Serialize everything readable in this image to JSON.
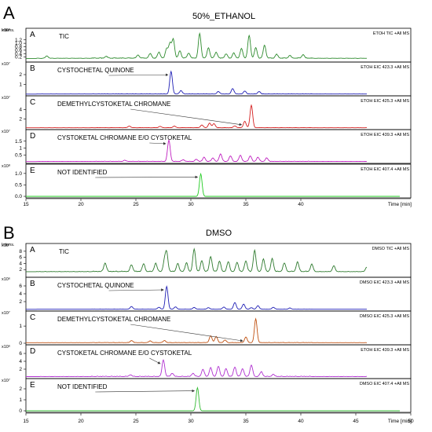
{
  "figure": {
    "panel_letters": [
      "A",
      "B"
    ],
    "titles": [
      "50%_ETHANOL",
      "DMSO"
    ]
  },
  "chart_data": [
    {
      "type": "line",
      "panel": "A",
      "title": "50%_ETHANOL",
      "xlabel": "Time [min]",
      "ylabel": "Intens.",
      "xlim": [
        15,
        50
      ],
      "x_ticks": [
        15,
        20,
        25,
        30,
        35,
        40
      ],
      "x_tick_labels": [
        "15",
        "20",
        "25",
        "30",
        "35",
        "40"
      ],
      "traces": [
        {
          "letter": "A",
          "label": "TIC",
          "legend": "ETOH TIC +All MS",
          "exponent": "x10⁸",
          "color": "#2e8b2e",
          "ylim": [
            0,
            1.6
          ],
          "yticks": [
            0.2,
            0.4,
            0.6,
            0.8,
            1.0,
            1.2
          ],
          "ytick_labels": [
            "0.2",
            "0.4",
            "0.6",
            "0.8",
            "1.0",
            "1.2"
          ],
          "baseline": 0.12,
          "noise": 0.05,
          "peaks": [
            [
              16.9,
              0.14
            ],
            [
              22.3,
              0.1
            ],
            [
              25.2,
              0.18
            ],
            [
              26.3,
              0.26
            ],
            [
              27.1,
              0.35
            ],
            [
              27.8,
              0.55
            ],
            [
              28.1,
              0.85
            ],
            [
              28.4,
              1.1
            ],
            [
              29.0,
              0.42
            ],
            [
              29.8,
              0.3
            ],
            [
              30.8,
              1.42
            ],
            [
              31.6,
              0.6
            ],
            [
              32.3,
              0.35
            ],
            [
              33.2,
              0.25
            ],
            [
              33.9,
              0.3
            ],
            [
              34.6,
              0.55
            ],
            [
              35.3,
              1.32
            ],
            [
              35.9,
              0.6
            ],
            [
              36.7,
              0.75
            ],
            [
              37.8,
              0.22
            ],
            [
              39.0,
              0.15
            ],
            [
              40.2,
              0.2
            ]
          ]
        },
        {
          "letter": "B",
          "label": "CYSTOCHETAL QUINONE",
          "legend": "ETOH EIC 423.3 +All MS",
          "exponent": "x10⁷",
          "color": "#1f1fb5",
          "ylim": [
            0,
            2.8
          ],
          "yticks": [
            1,
            2
          ],
          "ytick_labels": [
            "1",
            "2"
          ],
          "baseline": 0.02,
          "noise": 0.03,
          "peaks": [
            [
              28.2,
              2.3
            ],
            [
              29.1,
              0.35
            ],
            [
              32.5,
              0.25
            ],
            [
              33.8,
              0.55
            ],
            [
              34.9,
              0.3
            ],
            [
              36.2,
              0.25
            ]
          ],
          "annotation_at": 28.2
        },
        {
          "letter": "C",
          "label": "DEMETHYLCYSTOKETAL CHROMANE",
          "legend": "ETOH EIC 425.3 +All MS",
          "exponent": "x10⁷",
          "color": "#d42020",
          "ylim": [
            0,
            6.0
          ],
          "yticks": [
            2,
            4
          ],
          "ytick_labels": [
            "2",
            "4"
          ],
          "baseline": 0.05,
          "noise": 0.05,
          "peaks": [
            [
              24.4,
              0.35
            ],
            [
              27.2,
              0.3
            ],
            [
              28.5,
              0.35
            ],
            [
              31.0,
              0.6
            ],
            [
              31.7,
              1.0
            ],
            [
              32.1,
              0.9
            ],
            [
              34.0,
              0.4
            ],
            [
              34.9,
              1.4
            ],
            [
              35.5,
              4.9
            ]
          ],
          "annotation_at": 34.9
        },
        {
          "letter": "D",
          "label": "CYSTOKETAL CHROMANE E/O CYSTOKETAL",
          "legend": "ETOH EIC 439.3 +All MS",
          "exponent": "x10⁷",
          "color": "#c020c0",
          "ylim": [
            0,
            2.0
          ],
          "yticks": [
            0.5,
            1.0,
            1.5
          ],
          "ytick_labels": [
            "0.5",
            "1",
            "1.5"
          ],
          "baseline": 0.02,
          "noise": 0.03,
          "peaks": [
            [
              24.0,
              0.08
            ],
            [
              28.0,
              1.55
            ],
            [
              29.3,
              0.12
            ],
            [
              30.5,
              0.15
            ],
            [
              31.2,
              0.3
            ],
            [
              32.0,
              0.25
            ],
            [
              32.7,
              0.55
            ],
            [
              33.6,
              0.4
            ],
            [
              34.5,
              0.45
            ],
            [
              35.4,
              0.4
            ],
            [
              36.1,
              0.3
            ],
            [
              36.9,
              0.25
            ]
          ],
          "annotation_at": 28.0
        },
        {
          "letter": "E",
          "label": "NOT IDENTIFIED",
          "legend": "ETOH EIC 407.4 +All MS",
          "exponent": "x10⁸",
          "color": "#22cc22",
          "ylim": [
            0,
            1.2
          ],
          "yticks": [
            0.0,
            0.5,
            1.0
          ],
          "ytick_labels": [
            "0.0",
            "0.5",
            "1.0"
          ],
          "baseline": 0.0,
          "noise": 0.0,
          "peaks": [
            [
              30.9,
              0.98
            ]
          ],
          "annotation_at": 30.9
        }
      ]
    },
    {
      "type": "line",
      "panel": "B",
      "title": "DMSO",
      "xlabel": "Time [min]",
      "ylabel": "Intens.",
      "xlim": [
        15,
        50
      ],
      "x_ticks": [
        15,
        20,
        25,
        30,
        35,
        40,
        45,
        50
      ],
      "x_tick_labels": [
        "15",
        "20",
        "25",
        "30",
        "35",
        "40",
        "45",
        "50"
      ],
      "traces": [
        {
          "letter": "A",
          "label": "TIC",
          "legend": "DMSO TIC +All MS",
          "exponent": "x10⁷",
          "color": "#2e7a2e",
          "ylim": [
            0,
            9
          ],
          "yticks": [
            2,
            4,
            6,
            8
          ],
          "ytick_labels": [
            "2",
            "4",
            "6",
            "8"
          ],
          "baseline": 1.3,
          "noise": 0.25,
          "peaks": [
            [
              22.2,
              2.8
            ],
            [
              24.6,
              2.2
            ],
            [
              25.7,
              2.5
            ],
            [
              26.8,
              2.7
            ],
            [
              27.6,
              3.2
            ],
            [
              27.8,
              5.9
            ],
            [
              28.8,
              2.6
            ],
            [
              29.6,
              2.8
            ],
            [
              30.3,
              7.4
            ],
            [
              31.0,
              3.5
            ],
            [
              31.8,
              4.9
            ],
            [
              32.6,
              3.4
            ],
            [
              33.4,
              3.2
            ],
            [
              34.2,
              3.0
            ],
            [
              35.0,
              3.5
            ],
            [
              35.8,
              6.9
            ],
            [
              36.6,
              4.0
            ],
            [
              37.4,
              4.2
            ],
            [
              38.5,
              2.8
            ],
            [
              39.7,
              3.1
            ],
            [
              41.0,
              2.4
            ],
            [
              43.0,
              1.9
            ],
            [
              46.0,
              1.5
            ]
          ]
        },
        {
          "letter": "B",
          "label": "CYSTOCHETAL QUINONE",
          "legend": "DMSO EIC 423.3 +All MS",
          "exponent": "x10⁶",
          "color": "#1f1fb5",
          "ylim": [
            0,
            7
          ],
          "yticks": [
            2,
            4,
            6
          ],
          "ytick_labels": [
            "2",
            "4",
            "6"
          ],
          "baseline": 0.05,
          "noise": 0.05,
          "peaks": [
            [
              24.6,
              0.7
            ],
            [
              27.1,
              0.5
            ],
            [
              27.8,
              5.8
            ],
            [
              28.6,
              0.6
            ],
            [
              30.3,
              0.45
            ],
            [
              31.6,
              0.4
            ],
            [
              33.0,
              0.55
            ],
            [
              34.0,
              1.7
            ],
            [
              34.8,
              1.3
            ],
            [
              35.5,
              0.4
            ],
            [
              36.1,
              0.9
            ],
            [
              37.5,
              0.5
            ],
            [
              39.0,
              0.3
            ]
          ],
          "annotation_at": 27.8
        },
        {
          "letter": "C",
          "label": "DEMETHYLCYSTOKETAL CHROMANE",
          "legend": "DMSO EIC 425.3 +All MS",
          "exponent": "x10⁷",
          "color": "#c05010",
          "ylim": [
            0,
            1.6
          ],
          "yticks": [
            0,
            1
          ],
          "ytick_labels": [
            "0",
            "1"
          ],
          "baseline": 0.03,
          "noise": 0.02,
          "peaks": [
            [
              24.6,
              0.12
            ],
            [
              26.3,
              0.1
            ],
            [
              27.6,
              0.12
            ],
            [
              31.8,
              0.4
            ],
            [
              32.3,
              0.36
            ],
            [
              33.1,
              0.15
            ],
            [
              35.0,
              0.32
            ],
            [
              35.9,
              1.38
            ]
          ],
          "annotation_at": 35.0
        },
        {
          "letter": "D",
          "label": "CYSTOKETAL CHROMANE E/O CYSTOKETAL",
          "legend": "ETOH EIC 439.3 +All MS",
          "exponent": "x10⁶",
          "color": "#b030d0",
          "ylim": [
            0,
            7
          ],
          "yticks": [
            2,
            4,
            6
          ],
          "ytick_labels": [
            "2",
            "4",
            "6"
          ],
          "baseline": 0.1,
          "noise": 0.15,
          "peaks": [
            [
              24.5,
              0.4
            ],
            [
              27.5,
              4.2
            ],
            [
              28.3,
              0.8
            ],
            [
              30.2,
              0.8
            ],
            [
              31.1,
              1.8
            ],
            [
              31.8,
              2.2
            ],
            [
              32.5,
              2.6
            ],
            [
              33.2,
              2.0
            ],
            [
              34.0,
              2.4
            ],
            [
              34.7,
              2.0
            ],
            [
              35.5,
              2.9
            ],
            [
              36.4,
              1.2
            ],
            [
              37.5,
              0.5
            ]
          ],
          "annotation_at": 27.5
        },
        {
          "letter": "E",
          "label": "NOT IDENTIFIED",
          "legend": "DMSO EIC 407.4 +All MS",
          "exponent": "x10⁷",
          "color": "#33bb33",
          "ylim": [
            0,
            2.5
          ],
          "yticks": [
            0,
            1,
            2
          ],
          "ytick_labels": [
            "0",
            "1",
            "2"
          ],
          "baseline": 0.0,
          "noise": 0.0,
          "peaks": [
            [
              30.6,
              2.1
            ]
          ],
          "annotation_at": 30.6
        }
      ]
    }
  ]
}
